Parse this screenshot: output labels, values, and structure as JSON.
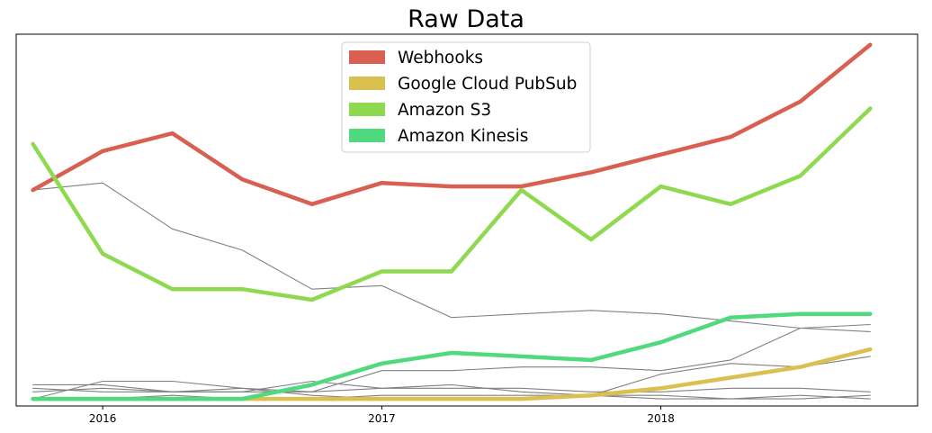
{
  "chart_data": {
    "type": "line",
    "title": "Raw Data",
    "xlabel": "",
    "ylabel": "",
    "grid": false,
    "legend_position": "top-center",
    "xlim": [
      2015.69,
      2018.92
    ],
    "ylim": [
      -0.02,
      1.03
    ],
    "x": [
      2015.75,
      2016.0,
      2016.25,
      2016.5,
      2016.75,
      2017.0,
      2017.25,
      2017.5,
      2017.75,
      2018.0,
      2018.25,
      2018.5,
      2018.75
    ],
    "x_ticks": [
      2016,
      2017,
      2018
    ],
    "x_tick_labels": [
      "2016",
      "2017",
      "2018"
    ],
    "series": [
      {
        "name": "Webhooks",
        "color": "#d95f50",
        "highlight": true,
        "values": [
          0.59,
          0.7,
          0.75,
          0.62,
          0.55,
          0.61,
          0.6,
          0.6,
          0.64,
          0.69,
          0.74,
          0.84,
          1.0
        ]
      },
      {
        "name": "Google Cloud PubSub",
        "color": "#d9c050",
        "highlight": true,
        "values": [
          0.0,
          0.0,
          0.0,
          0.0,
          0.0,
          0.0,
          0.0,
          0.0,
          0.01,
          0.03,
          0.06,
          0.09,
          0.14
        ]
      },
      {
        "name": "Amazon S3",
        "color": "#8ed950",
        "highlight": true,
        "values": [
          0.72,
          0.41,
          0.31,
          0.31,
          0.28,
          0.36,
          0.36,
          0.59,
          0.45,
          0.6,
          0.55,
          0.63,
          0.82
        ]
      },
      {
        "name": "Amazon Kinesis",
        "color": "#50d97f",
        "highlight": true,
        "values": [
          0.0,
          0.0,
          0.0,
          0.0,
          0.04,
          0.1,
          0.13,
          0.12,
          0.11,
          0.16,
          0.23,
          0.24,
          0.24
        ]
      },
      {
        "name": "",
        "color": "#808080",
        "highlight": false,
        "values": [
          0.59,
          0.61,
          0.48,
          0.42,
          0.31,
          0.32,
          0.23,
          0.24,
          0.25,
          0.24,
          0.22,
          0.2,
          0.19
        ]
      },
      {
        "name": "",
        "color": "#808080",
        "highlight": false,
        "values": [
          0.0,
          0.05,
          0.05,
          0.03,
          0.02,
          0.08,
          0.08,
          0.09,
          0.09,
          0.08,
          0.11,
          0.2,
          0.21
        ]
      },
      {
        "name": "",
        "color": "#808080",
        "highlight": false,
        "values": [
          0.04,
          0.04,
          0.02,
          0.02,
          0.05,
          0.03,
          0.04,
          0.02,
          0.01,
          0.07,
          0.1,
          0.09,
          0.12
        ]
      },
      {
        "name": "",
        "color": "#808080",
        "highlight": false,
        "values": [
          0.03,
          0.02,
          0.02,
          0.02,
          0.02,
          0.03,
          0.03,
          0.03,
          0.02,
          0.02,
          0.03,
          0.03,
          0.02
        ]
      },
      {
        "name": "",
        "color": "#808080",
        "highlight": false,
        "values": [
          0.02,
          0.03,
          0.02,
          0.03,
          0.01,
          0.0,
          0.0,
          0.0,
          0.01,
          0.01,
          0.0,
          0.0,
          0.01
        ]
      },
      {
        "name": "",
        "color": "#808080",
        "highlight": false,
        "values": [
          0.0,
          0.0,
          0.01,
          0.0,
          0.0,
          0.01,
          0.01,
          0.01,
          0.01,
          0.0,
          0.0,
          0.01,
          0.0
        ]
      }
    ]
  }
}
